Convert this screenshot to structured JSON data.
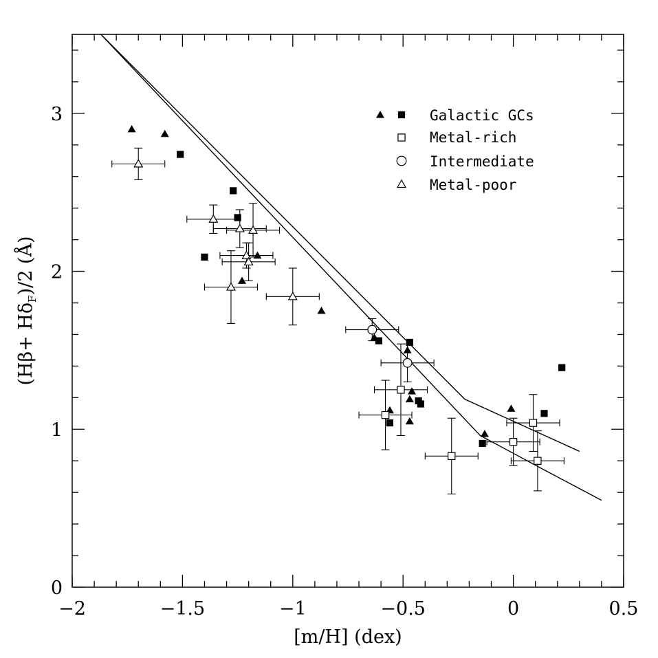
{
  "chart_data": {
    "type": "scatter",
    "xlabel": "[m/H] (dex)",
    "ylabel": "(Hβ+ Hδ_F)/2 (Å)",
    "xlim": [
      -2.0,
      0.5
    ],
    "ylim": [
      0,
      3.5
    ],
    "xticks": [
      -2,
      -1.5,
      -1,
      -0.5,
      0,
      0.5
    ],
    "xtick_labels": [
      "−2",
      "−1.5",
      "−1",
      "−0.5",
      "0",
      "0.5"
    ],
    "yticks": [
      0,
      1,
      2,
      3
    ],
    "ytick_labels": [
      "0",
      "1",
      "2",
      "3"
    ],
    "grid": false,
    "legend_position": "top-right",
    "legend": [
      {
        "label": "Galactic GCs",
        "markers": [
          "filled-triangle",
          "filled-square"
        ]
      },
      {
        "label": "Metal-rich",
        "markers": [
          "open-square"
        ]
      },
      {
        "label": "Intermediate",
        "markers": [
          "open-circle"
        ]
      },
      {
        "label": "Metal-poor",
        "markers": [
          "open-triangle"
        ]
      }
    ],
    "series": [
      {
        "name": "Galactic GCs",
        "marker": "filled-triangle",
        "points": [
          {
            "x": -1.73,
            "y": 2.9
          },
          {
            "x": -1.58,
            "y": 2.87
          },
          {
            "x": -1.23,
            "y": 1.94
          },
          {
            "x": -1.16,
            "y": 2.1
          },
          {
            "x": -0.87,
            "y": 1.75
          },
          {
            "x": -0.63,
            "y": 1.58
          },
          {
            "x": -0.48,
            "y": 1.5
          },
          {
            "x": -0.56,
            "y": 1.12
          },
          {
            "x": -0.46,
            "y": 1.24
          },
          {
            "x": -0.47,
            "y": 1.19
          },
          {
            "x": -0.47,
            "y": 1.05
          },
          {
            "x": -0.13,
            "y": 0.97
          },
          {
            "x": -0.01,
            "y": 1.13
          }
        ]
      },
      {
        "name": "Galactic GCs",
        "marker": "filled-square",
        "points": [
          {
            "x": -1.51,
            "y": 2.74
          },
          {
            "x": -1.27,
            "y": 2.51
          },
          {
            "x": -1.25,
            "y": 2.34
          },
          {
            "x": -1.4,
            "y": 2.09
          },
          {
            "x": -0.61,
            "y": 1.56
          },
          {
            "x": -0.47,
            "y": 1.55
          },
          {
            "x": -0.56,
            "y": 1.04
          },
          {
            "x": -0.43,
            "y": 1.18
          },
          {
            "x": -0.42,
            "y": 1.16
          },
          {
            "x": -0.14,
            "y": 0.91
          },
          {
            "x": 0.14,
            "y": 1.1
          },
          {
            "x": 0.22,
            "y": 1.39
          }
        ]
      },
      {
        "name": "Metal-rich",
        "marker": "open-square",
        "points": [
          {
            "x": -0.51,
            "y": 1.25,
            "xerr": 0.12,
            "yerr": 0.29
          },
          {
            "x": -0.58,
            "y": 1.09,
            "xerr": 0.12,
            "yerr": 0.22
          },
          {
            "x": -0.28,
            "y": 0.83,
            "xerr": 0.12,
            "yerr": 0.24
          },
          {
            "x": 0.0,
            "y": 0.92,
            "xerr": 0.12,
            "yerr": 0.15
          },
          {
            "x": 0.09,
            "y": 1.04,
            "xerr": 0.12,
            "yerr": 0.18
          },
          {
            "x": 0.11,
            "y": 0.8,
            "xerr": 0.12,
            "yerr": 0.19
          }
        ]
      },
      {
        "name": "Intermediate",
        "marker": "open-circle",
        "points": [
          {
            "x": -0.64,
            "y": 1.63,
            "xerr": 0.12,
            "yerr": 0.07
          },
          {
            "x": -0.48,
            "y": 1.42,
            "xerr": 0.12,
            "yerr": 0.12
          }
        ]
      },
      {
        "name": "Metal-poor",
        "marker": "open-triangle",
        "points": [
          {
            "x": -1.7,
            "y": 2.68,
            "xerr": 0.12,
            "yerr": 0.1
          },
          {
            "x": -1.36,
            "y": 2.33,
            "xerr": 0.12,
            "yerr": 0.09
          },
          {
            "x": -1.24,
            "y": 2.27,
            "xerr": 0.12,
            "yerr": 0.12
          },
          {
            "x": -1.18,
            "y": 2.26,
            "xerr": 0.12,
            "yerr": 0.17
          },
          {
            "x": -1.21,
            "y": 2.1,
            "xerr": 0.12,
            "yerr": 0.08
          },
          {
            "x": -1.2,
            "y": 2.06,
            "xerr": 0.12,
            "yerr": 0.12
          },
          {
            "x": -1.28,
            "y": 1.9,
            "xerr": 0.12,
            "yerr": 0.23
          },
          {
            "x": -1.0,
            "y": 1.84,
            "xerr": 0.12,
            "yerr": 0.18
          }
        ]
      },
      {
        "marker": "line",
        "points": [
          {
            "x": -1.87,
            "y": 3.5
          },
          {
            "x": -0.22,
            "y": 1.19
          },
          {
            "x": 0.3,
            "y": 0.86
          }
        ]
      },
      {
        "marker": "line",
        "points": [
          {
            "x": -1.87,
            "y": 3.5
          },
          {
            "x": -0.15,
            "y": 0.96
          },
          {
            "x": 0.13,
            "y": 0.75
          },
          {
            "x": 0.4,
            "y": 0.55
          }
        ]
      }
    ]
  }
}
